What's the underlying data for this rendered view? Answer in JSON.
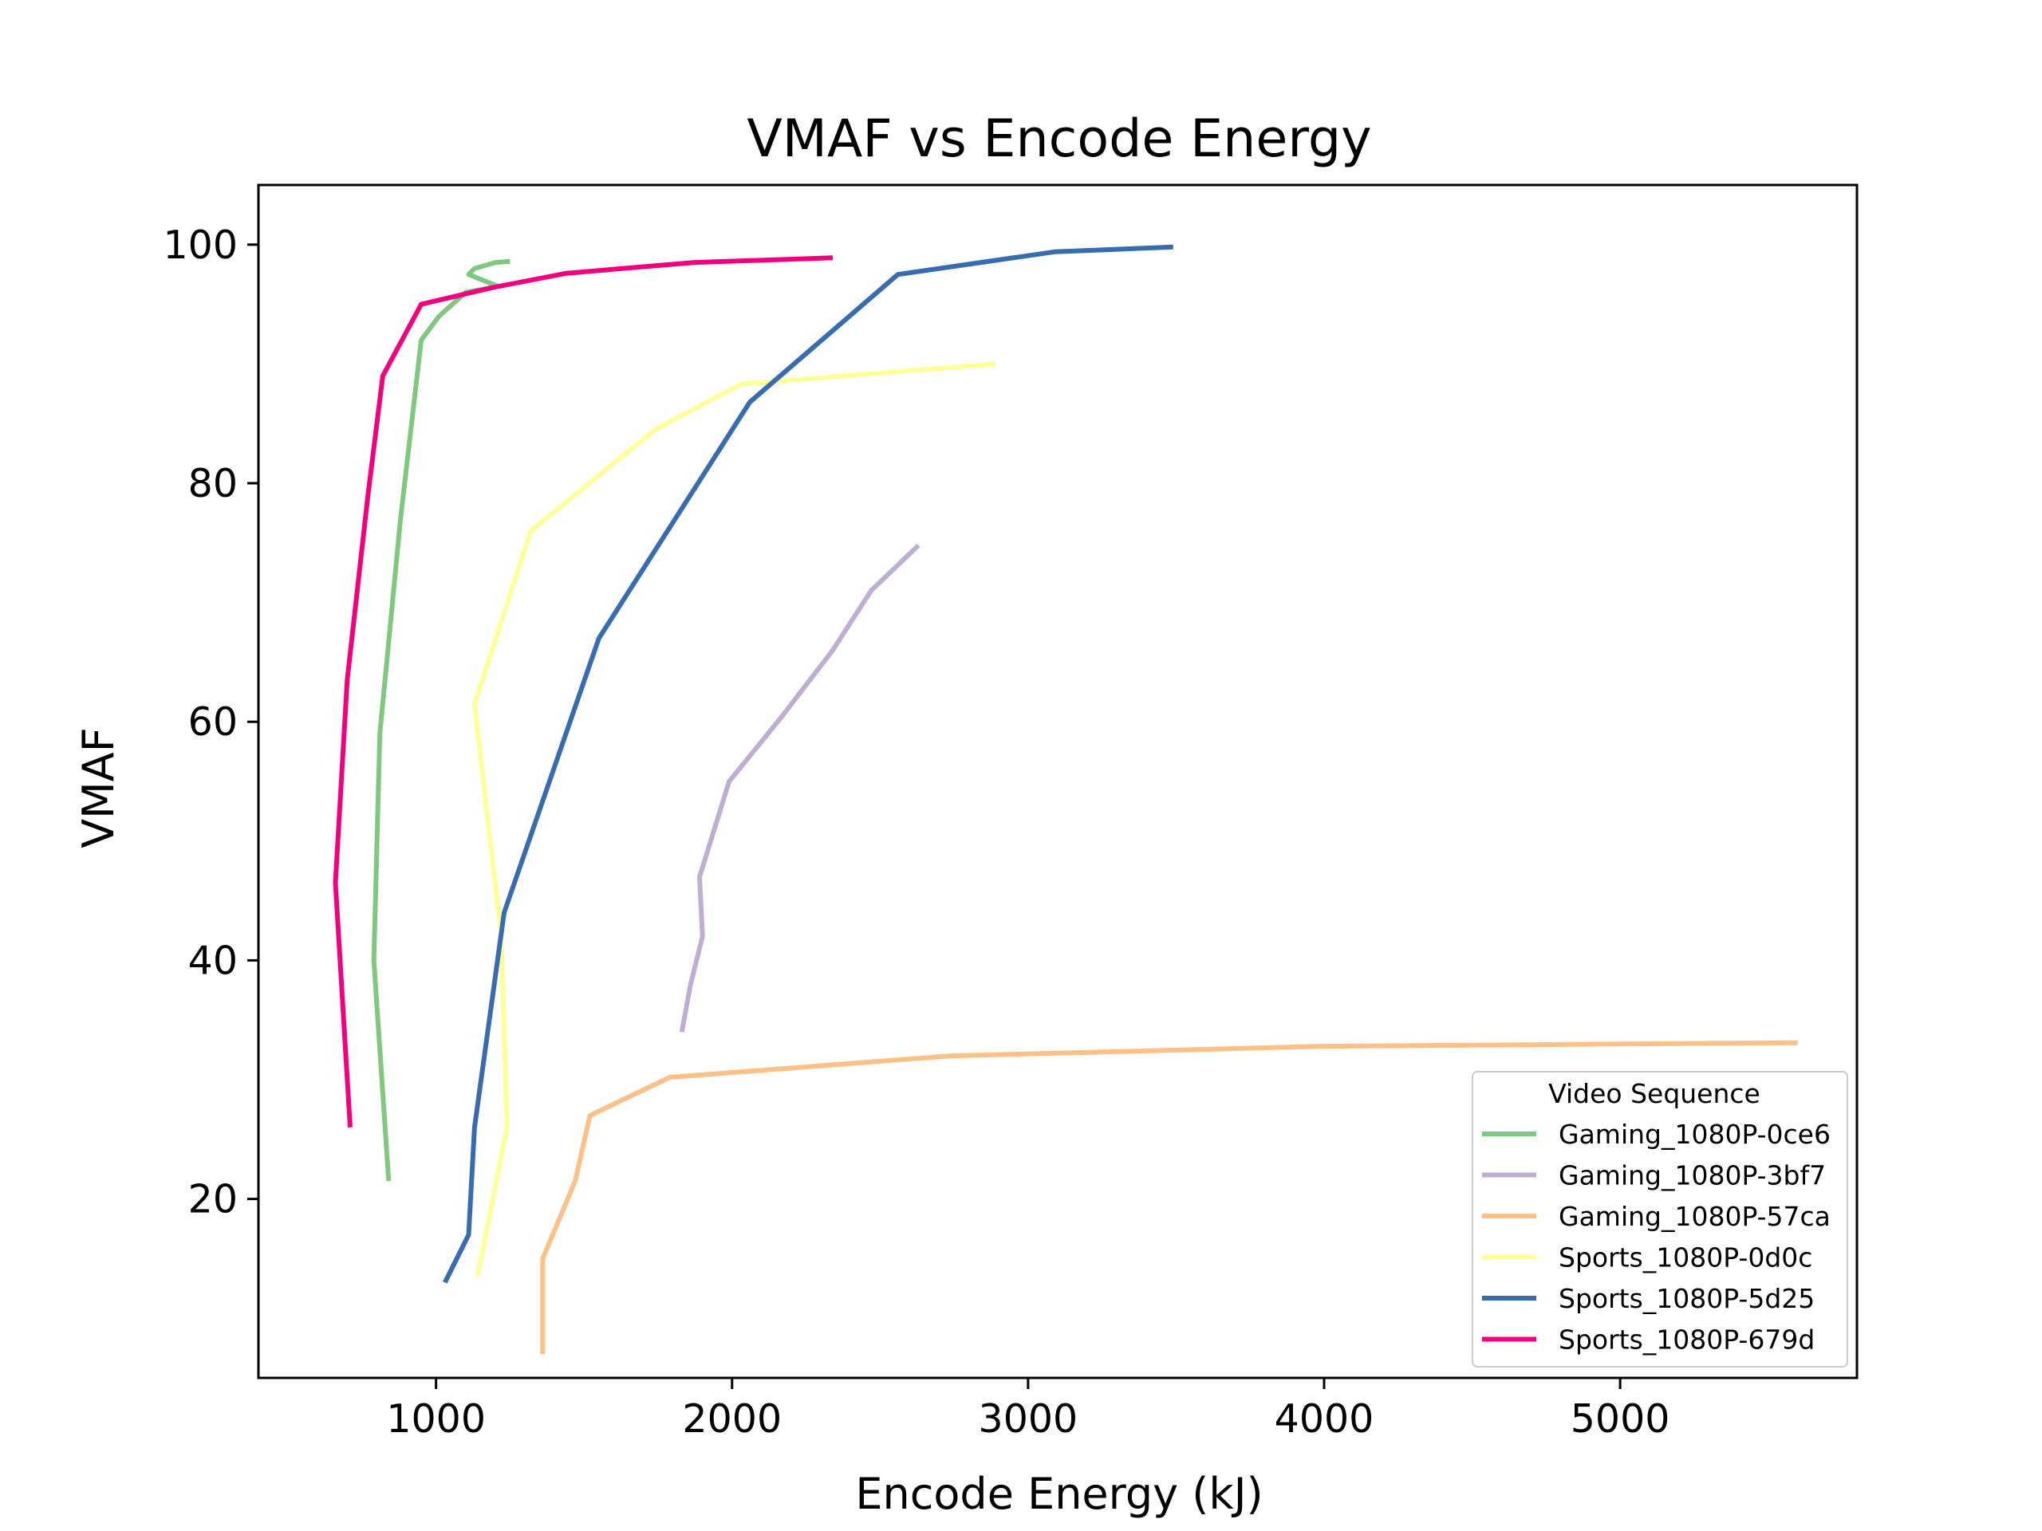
{
  "chart_data": {
    "type": "line",
    "title": "VMAF vs Encode Energy",
    "xlabel": "Encode Energy (kJ)",
    "ylabel": "VMAF",
    "xlim": [
      400,
      5800
    ],
    "ylim": [
      5,
      105
    ],
    "xticks": [
      1000,
      2000,
      3000,
      4000,
      5000
    ],
    "yticks": [
      20,
      40,
      60,
      80,
      100
    ],
    "grid": false,
    "legend": {
      "title": "Video Sequence",
      "placement": "lower-right"
    },
    "series": [
      {
        "name": "Gaming_1080P-0ce6",
        "color": "#7fc97f",
        "points": [
          [
            840,
            21.5
          ],
          [
            790,
            40
          ],
          [
            810,
            59
          ],
          [
            880,
            77
          ],
          [
            950,
            92
          ],
          [
            1010,
            94
          ],
          [
            1100,
            96
          ],
          [
            1210,
            96.5
          ],
          [
            1110,
            97.5
          ],
          [
            1130,
            98
          ],
          [
            1200,
            98.5
          ],
          [
            1250,
            98.6
          ]
        ]
      },
      {
        "name": "Gaming_1080P-3bf7",
        "color": "#beaed4",
        "points": [
          [
            1830,
            34
          ],
          [
            1860,
            38
          ],
          [
            1900,
            42
          ],
          [
            1890,
            47
          ],
          [
            1990,
            55
          ],
          [
            2170,
            60.5
          ],
          [
            2340,
            66
          ],
          [
            2470,
            71
          ],
          [
            2630,
            74.8
          ]
        ]
      },
      {
        "name": "Gaming_1080P-57ca",
        "color": "#fdc086",
        "points": [
          [
            1360,
            7
          ],
          [
            1360,
            15
          ],
          [
            1470,
            21.5
          ],
          [
            1520,
            27
          ],
          [
            1790,
            30.2
          ],
          [
            2740,
            32
          ],
          [
            4000,
            32.8
          ],
          [
            5600,
            33.1
          ]
        ]
      },
      {
        "name": "Sports_1080P-0d0c",
        "color": "#ffff99",
        "points": [
          [
            1140,
            13.5
          ],
          [
            1240,
            26
          ],
          [
            1220,
            42
          ],
          [
            1130,
            61.5
          ],
          [
            1320,
            76
          ],
          [
            1740,
            84.5
          ],
          [
            2030,
            88.3
          ],
          [
            2890,
            90
          ]
        ]
      },
      {
        "name": "Sports_1080P-5d25",
        "color": "#386cb0",
        "points": [
          [
            1030,
            13
          ],
          [
            1110,
            17
          ],
          [
            1130,
            26
          ],
          [
            1230,
            44
          ],
          [
            1550,
            67
          ],
          [
            2060,
            86.8
          ],
          [
            2560,
            97.5
          ],
          [
            3090,
            99.4
          ],
          [
            3490,
            99.8
          ]
        ]
      },
      {
        "name": "Sports_1080P-679d",
        "color": "#f0027f",
        "points": [
          [
            710,
            26
          ],
          [
            660,
            46.5
          ],
          [
            700,
            63.5
          ],
          [
            770,
            79
          ],
          [
            820,
            89
          ],
          [
            950,
            95
          ],
          [
            1190,
            96.4
          ],
          [
            1440,
            97.6
          ],
          [
            1870,
            98.5
          ],
          [
            2340,
            98.9
          ]
        ]
      }
    ]
  }
}
